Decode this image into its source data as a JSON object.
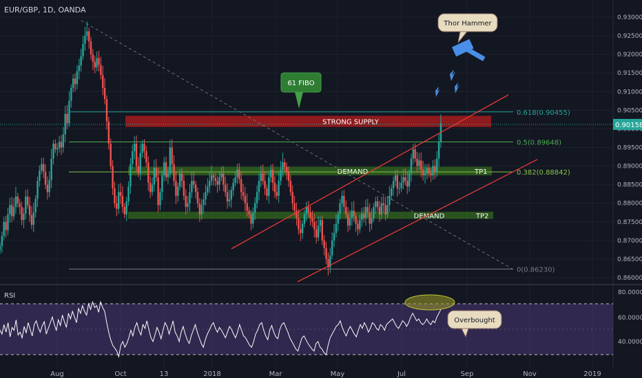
{
  "header": {
    "symbol_line": "EUR/GBP, 1D, OANDA"
  },
  "rsi_panel": {
    "label": "RSI",
    "levels": [
      "80.0000",
      "60.0000",
      "40.0000"
    ]
  },
  "chart_data": {
    "type": "candlestick",
    "ylim": [
      0.8575,
      0.9325
    ],
    "y_ticks": [
      "0.93000",
      "0.92500",
      "0.92000",
      "0.91500",
      "0.91000",
      "0.90500",
      "0.90000",
      "0.89500",
      "0.89000",
      "0.88500",
      "0.88000",
      "0.87500",
      "0.87000",
      "0.86500",
      "0.86000"
    ],
    "x_ticks": [
      "Aug",
      "Oct",
      "13",
      "2018",
      "Mar",
      "May",
      "Jul",
      "Sep",
      "Nov",
      "2019"
    ],
    "last_price": "0.90158",
    "fib_levels": [
      {
        "label": "0.618(0.90455)",
        "value": 0.90455,
        "color": "#26a69a"
      },
      {
        "label": "0.5(0.89648)",
        "value": 0.89648,
        "color": "#4caf50"
      },
      {
        "label": "0.382(0.88842)",
        "value": 0.88842,
        "color": "#8bc34a"
      },
      {
        "label": "0(0.86230)",
        "value": 0.8623,
        "color": "#787b86"
      }
    ],
    "zones": [
      {
        "label": "STRONG SUPPLY",
        "top": 0.9035,
        "bottom": 0.9005,
        "color": "#b71c1c"
      },
      {
        "label": "DEMAND",
        "tag": "TP1",
        "top": 0.8898,
        "bottom": 0.8875,
        "color": "#33691e"
      },
      {
        "label": "DEMAND",
        "tag": "TP2",
        "top": 0.8777,
        "bottom": 0.8758,
        "color": "#33691e"
      }
    ],
    "callouts": [
      "61 FIBO",
      "Thor Hammer",
      "Overbought"
    ],
    "closes": [
      0.8685,
      0.8712,
      0.875,
      0.8728,
      0.877,
      0.8795,
      0.8765,
      0.879,
      0.8818,
      0.88,
      0.879,
      0.8755,
      0.8772,
      0.8818,
      0.8795,
      0.8768,
      0.8742,
      0.8775,
      0.8812,
      0.886,
      0.8888,
      0.8905,
      0.8885,
      0.885,
      0.883,
      0.8862,
      0.892,
      0.896,
      0.8945,
      0.8948,
      0.8965,
      0.895,
      0.8985,
      0.904,
      0.9015,
      0.9075,
      0.911,
      0.9135,
      0.912,
      0.9155,
      0.917,
      0.9195,
      0.9228,
      0.925,
      0.9262,
      0.9235,
      0.92,
      0.918,
      0.9165,
      0.919,
      0.9172,
      0.9145,
      0.911,
      0.908,
      0.902,
      0.896,
      0.89,
      0.884,
      0.88,
      0.8785,
      0.883,
      0.882,
      0.879,
      0.877,
      0.8805,
      0.8845,
      0.8905,
      0.894,
      0.896,
      0.89,
      0.888,
      0.8935,
      0.896,
      0.894,
      0.891,
      0.8855,
      0.883,
      0.885,
      0.8895,
      0.887,
      0.8795,
      0.883,
      0.8875,
      0.891,
      0.887,
      0.888,
      0.895,
      0.8905,
      0.886,
      0.882,
      0.8845,
      0.888,
      0.886,
      0.882,
      0.879,
      0.88,
      0.883,
      0.886,
      0.885,
      0.883,
      0.88,
      0.877,
      0.8795,
      0.881,
      0.883,
      0.8845,
      0.886,
      0.8875,
      0.8868,
      0.886,
      0.885,
      0.887,
      0.888,
      0.885,
      0.883,
      0.8805,
      0.881,
      0.8835,
      0.8855,
      0.887,
      0.889,
      0.8865,
      0.883,
      0.882,
      0.88,
      0.878,
      0.877,
      0.8745,
      0.8775,
      0.88,
      0.883,
      0.886,
      0.888,
      0.886,
      0.884,
      0.882,
      0.887,
      0.889,
      0.8855,
      0.883,
      0.882,
      0.886,
      0.889,
      0.891,
      0.8898,
      0.8885,
      0.886,
      0.883,
      0.88,
      0.878,
      0.876,
      0.873,
      0.872,
      0.8745,
      0.877,
      0.879,
      0.8775,
      0.876,
      0.875,
      0.873,
      0.8708,
      0.874,
      0.8755,
      0.87,
      0.868,
      0.865,
      0.8628,
      0.866,
      0.87,
      0.872,
      0.8745,
      0.877,
      0.88,
      0.882,
      0.879,
      0.877,
      0.874,
      0.876,
      0.878,
      0.8765,
      0.8745,
      0.873,
      0.8755,
      0.8772,
      0.876,
      0.879,
      0.8775,
      0.8745,
      0.876,
      0.879,
      0.8805,
      0.879,
      0.877,
      0.88,
      0.8795,
      0.877,
      0.8795,
      0.882,
      0.884,
      0.886,
      0.8875,
      0.884,
      0.884,
      0.8855,
      0.887,
      0.886,
      0.8845,
      0.888,
      0.892,
      0.8945,
      0.892,
      0.89,
      0.8915,
      0.889,
      0.8875,
      0.888,
      0.8895,
      0.888,
      0.8875,
      0.89,
      0.8885,
      0.892,
      0.8965,
      0.9015
    ],
    "rsi": [
      52,
      48,
      58,
      50,
      60,
      45,
      55,
      52,
      63,
      47,
      50,
      44,
      56,
      49,
      60,
      53,
      46,
      58,
      62,
      55,
      50,
      57,
      61,
      48,
      54,
      60,
      66,
      58,
      52,
      63,
      57,
      68,
      61,
      55,
      70,
      64,
      72,
      66,
      60,
      75,
      70,
      78,
      72,
      68,
      80,
      74,
      82,
      76,
      78,
      71,
      82,
      76,
      72,
      60,
      50,
      42,
      36,
      33,
      30,
      24,
      36,
      40,
      34,
      38,
      44,
      52,
      46,
      55,
      60,
      52,
      47,
      58,
      54,
      62,
      52,
      44,
      40,
      47,
      55,
      50,
      43,
      52,
      60,
      56,
      48,
      55,
      62,
      50,
      46,
      40,
      50,
      56,
      48,
      42,
      38,
      46,
      52,
      58,
      50,
      44,
      38,
      34,
      42,
      48,
      52,
      57,
      60,
      54,
      50,
      55,
      52,
      48,
      44,
      50,
      56,
      53,
      48,
      44,
      50,
      58,
      52,
      46,
      44,
      40,
      36,
      34,
      40,
      48,
      52,
      58,
      60,
      52,
      46,
      42,
      52,
      57,
      50,
      45,
      43,
      53,
      58,
      60,
      55,
      50,
      44,
      40,
      36,
      32,
      30,
      37,
      44,
      46,
      42,
      38,
      35,
      32,
      30,
      38,
      40,
      34,
      32,
      28,
      26,
      36,
      44,
      48,
      52,
      56,
      58,
      62,
      55,
      50,
      46,
      52,
      56,
      52,
      48,
      45,
      52,
      58,
      54,
      60,
      56,
      50,
      54,
      60,
      58,
      54,
      52,
      58,
      56,
      52,
      58,
      60,
      62,
      64,
      60,
      56,
      54,
      58,
      62,
      60,
      56,
      60,
      66,
      70,
      66,
      62,
      64,
      60,
      58,
      60,
      64,
      60,
      58,
      62,
      60,
      66,
      70,
      74
    ]
  }
}
